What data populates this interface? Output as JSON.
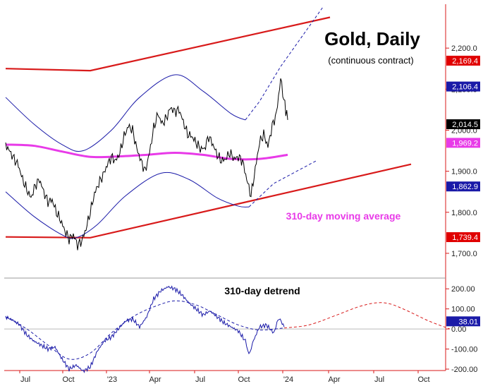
{
  "chart_data": [
    {
      "type": "line",
      "title": "Gold, Daily",
      "subtitle": "(continuous contract)",
      "annotation": "310-day moving average",
      "y_axis_side": "right",
      "ylim": [
        1650,
        2300
      ],
      "yticks": [
        2200,
        2100,
        2000,
        1900,
        1800,
        1700
      ],
      "ytick_labels": [
        "2,200.0",
        "2,100.0",
        "2,000.0",
        "1,900.0",
        "1,800.0",
        "1,700.0"
      ],
      "x_tick_labels": [
        "Jul",
        "Oct",
        "'23",
        "Apr",
        "Jul",
        "Oct",
        "'24",
        "Apr",
        "Jul",
        "Oct"
      ],
      "price_badges": [
        {
          "value": 2169.4,
          "label": "2,169.4",
          "color": "#e00000",
          "text_color": "#ffffff"
        },
        {
          "value": 2106.4,
          "label": "2,106.4",
          "color": "#1a1aa8",
          "text_color": "#ffffff"
        },
        {
          "value": 2014.5,
          "label": "2,014.5",
          "color": "#000000",
          "text_color": "#ffffff"
        },
        {
          "value": 1969.2,
          "label": "1,969.2",
          "color": "#e83ae8",
          "text_color": "#ffffff"
        },
        {
          "value": 1862.9,
          "label": "1,862.9",
          "color": "#1a1aa8",
          "text_color": "#ffffff"
        },
        {
          "value": 1739.4,
          "label": "1,739.4",
          "color": "#e00000",
          "text_color": "#ffffff"
        }
      ],
      "series": [
        {
          "name": "Gold close",
          "color": "#000000",
          "points": [
            [
              0,
              1965
            ],
            [
              6,
              1948
            ],
            [
              12,
              1930
            ],
            [
              18,
              1915
            ],
            [
              24,
              1880
            ],
            [
              30,
              1855
            ],
            [
              36,
              1835
            ],
            [
              42,
              1865
            ],
            [
              48,
              1880
            ],
            [
              54,
              1850
            ],
            [
              60,
              1825
            ],
            [
              66,
              1830
            ],
            [
              72,
              1800
            ],
            [
              78,
              1780
            ],
            [
              84,
              1755
            ],
            [
              90,
              1735
            ],
            [
              96,
              1745
            ],
            [
              102,
              1720
            ],
            [
              108,
              1730
            ],
            [
              114,
              1760
            ],
            [
              120,
              1800
            ],
            [
              126,
              1845
            ],
            [
              132,
              1870
            ],
            [
              138,
              1890
            ],
            [
              144,
              1915
            ],
            [
              150,
              1935
            ],
            [
              156,
              1925
            ],
            [
              162,
              1945
            ],
            [
              168,
              1985
            ],
            [
              174,
              2010
            ],
            [
              180,
              2000
            ],
            [
              186,
              1955
            ],
            [
              192,
              1925
            ],
            [
              198,
              1900
            ],
            [
              204,
              1945
            ],
            [
              210,
              2005
            ],
            [
              216,
              2040
            ],
            [
              222,
              2015
            ],
            [
              228,
              2030
            ],
            [
              234,
              2055
            ],
            [
              240,
              2045
            ],
            [
              246,
              2050
            ],
            [
              252,
              2020
            ],
            [
              258,
              1990
            ],
            [
              264,
              1985
            ],
            [
              270,
              1970
            ],
            [
              276,
              1955
            ],
            [
              282,
              1955
            ],
            [
              288,
              1985
            ],
            [
              294,
              1965
            ],
            [
              300,
              1940
            ],
            [
              306,
              1925
            ],
            [
              312,
              1930
            ],
            [
              318,
              1945
            ],
            [
              324,
              1930
            ],
            [
              330,
              1935
            ],
            [
              336,
              1925
            ],
            [
              342,
              1880
            ],
            [
              348,
              1840
            ],
            [
              354,
              1905
            ],
            [
              360,
              1970
            ],
            [
              366,
              1990
            ],
            [
              372,
              1960
            ],
            [
              378,
              2010
            ],
            [
              384,
              2040
            ],
            [
              390,
              2125
            ],
            [
              396,
              2060
            ],
            [
              400,
              2025
            ]
          ]
        },
        {
          "name": "310-day moving average",
          "color": "#e83ae8",
          "points": [
            [
              0,
              1965
            ],
            [
              40,
              1962
            ],
            [
              80,
              1948
            ],
            [
              120,
              1935
            ],
            [
              160,
              1936
            ],
            [
              200,
              1940
            ],
            [
              240,
              1945
            ],
            [
              280,
              1940
            ],
            [
              320,
              1930
            ],
            [
              360,
              1930
            ],
            [
              400,
              1940
            ]
          ]
        },
        {
          "name": "envelope upper",
          "color": "#1a1aa8",
          "points": [
            [
              0,
              2080
            ],
            [
              40,
              2015
            ],
            [
              80,
              1965
            ],
            [
              110,
              1950
            ],
            [
              150,
              2000
            ],
            [
              190,
              2080
            ],
            [
              240,
              2135
            ],
            [
              280,
              2095
            ],
            [
              320,
              2040
            ],
            [
              340,
              2025
            ],
            [
              360,
              2070
            ],
            [
              390,
              2155
            ],
            [
              450,
              2300
            ]
          ]
        },
        {
          "name": "envelope lower",
          "color": "#1a1aa8",
          "points": [
            [
              0,
              1850
            ],
            [
              40,
              1790
            ],
            [
              80,
              1745
            ],
            [
              100,
              1738
            ],
            [
              130,
              1770
            ],
            [
              170,
              1840
            ],
            [
              220,
              1895
            ],
            [
              260,
              1880
            ],
            [
              300,
              1835
            ],
            [
              330,
              1815
            ],
            [
              345,
              1813
            ],
            [
              380,
              1870
            ],
            [
              440,
              1925
            ]
          ]
        },
        {
          "name": "channel upper",
          "color": "#d81a1a",
          "points": [
            [
              0,
              2150
            ],
            [
              120,
              2145
            ],
            [
              460,
              2275
            ]
          ]
        },
        {
          "name": "channel lower",
          "color": "#d81a1a",
          "points": [
            [
              0,
              1740
            ],
            [
              120,
              1738
            ],
            [
              575,
              1917
            ]
          ]
        }
      ]
    },
    {
      "type": "line",
      "title": "310-day detrend",
      "y_axis_side": "right",
      "ylim": [
        -200,
        250
      ],
      "yticks": [
        200,
        100,
        0,
        -100,
        -200
      ],
      "ytick_labels": [
        "200.00",
        "100.00",
        "0.00",
        "-100.00",
        "-200.00"
      ],
      "price_badges": [
        {
          "value": 38.01,
          "label": "38.01",
          "color": "#1a1aa8",
          "text_color": "#ffffff"
        }
      ],
      "series": [
        {
          "name": "detrend",
          "color": "#1a1aa8",
          "points": [
            [
              0,
              60
            ],
            [
              10,
              45
            ],
            [
              20,
              20
            ],
            [
              30,
              -30
            ],
            [
              40,
              -60
            ],
            [
              50,
              -80
            ],
            [
              60,
              -100
            ],
            [
              70,
              -90
            ],
            [
              80,
              -150
            ],
            [
              90,
              -200
            ],
            [
              100,
              -180
            ],
            [
              110,
              -210
            ],
            [
              120,
              -190
            ],
            [
              130,
              -110
            ],
            [
              140,
              -60
            ],
            [
              150,
              -40
            ],
            [
              160,
              0
            ],
            [
              170,
              40
            ],
            [
              180,
              50
            ],
            [
              190,
              10
            ],
            [
              200,
              60
            ],
            [
              210,
              150
            ],
            [
              220,
              190
            ],
            [
              230,
              210
            ],
            [
              240,
              200
            ],
            [
              250,
              170
            ],
            [
              260,
              130
            ],
            [
              270,
              100
            ],
            [
              280,
              70
            ],
            [
              290,
              90
            ],
            [
              300,
              60
            ],
            [
              310,
              30
            ],
            [
              320,
              10
            ],
            [
              330,
              -10
            ],
            [
              340,
              -60
            ],
            [
              345,
              -130
            ],
            [
              350,
              -70
            ],
            [
              360,
              10
            ],
            [
              370,
              20
            ],
            [
              380,
              -20
            ],
            [
              388,
              55
            ],
            [
              395,
              10
            ]
          ]
        },
        {
          "name": "detrend cycle",
          "color": "#1a1aa8",
          "points": [
            [
              0,
              60
            ],
            [
              30,
              0
            ],
            [
              60,
              -80
            ],
            [
              90,
              -150
            ],
            [
              120,
              -120
            ],
            [
              150,
              -20
            ],
            [
              180,
              60
            ],
            [
              210,
              110
            ],
            [
              240,
              140
            ],
            [
              270,
              120
            ],
            [
              300,
              70
            ],
            [
              330,
              20
            ],
            [
              360,
              -5
            ],
            [
              395,
              5
            ]
          ]
        },
        {
          "name": "projected cycle",
          "color": "#d81a1a",
          "points": [
            [
              395,
              5
            ],
            [
              430,
              20
            ],
            [
              470,
              70
            ],
            [
              500,
              110
            ],
            [
              525,
              130
            ],
            [
              545,
              125
            ],
            [
              570,
              90
            ],
            [
              600,
              40
            ],
            [
              630,
              0
            ]
          ]
        }
      ]
    }
  ]
}
